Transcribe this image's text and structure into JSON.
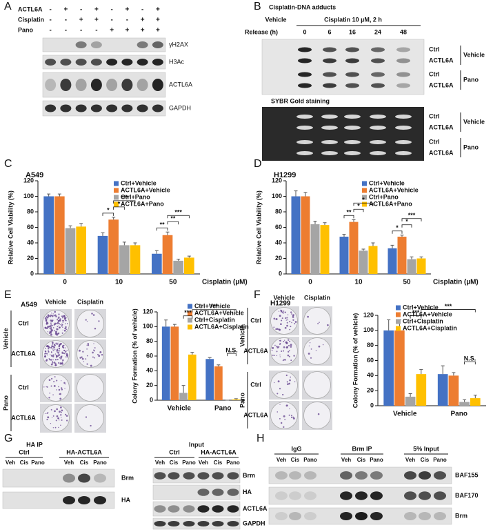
{
  "panels": {
    "A": {
      "letter": "A",
      "treatments": [
        {
          "name": "ACTL6A",
          "signs": [
            "-",
            "+",
            "-",
            "+",
            "-",
            "+",
            "-",
            "+"
          ]
        },
        {
          "name": "Cisplatin",
          "signs": [
            "-",
            "-",
            "+",
            "+",
            "-",
            "-",
            "+",
            "+"
          ]
        },
        {
          "name": "Pano",
          "signs": [
            "-",
            "-",
            "-",
            "-",
            "+",
            "+",
            "+",
            "+"
          ]
        }
      ],
      "blots": [
        "γH2AX",
        "H3Ac",
        "ACTL6A",
        "GAPDH"
      ]
    },
    "B": {
      "letter": "B",
      "title": "Cisplatin-DNA adducts",
      "vehicle": "Vehicle",
      "treatment": "Cisplatin 10 µM, 2 h",
      "release_label": "Release (h)",
      "release": [
        0,
        6,
        16,
        24,
        48
      ],
      "rows": [
        "Ctrl",
        "ACTL6A",
        "Ctrl",
        "ACTL6A"
      ],
      "groups": [
        "Vehicle",
        "Pano"
      ],
      "stain_title": "SYBR Gold staining",
      "stain_rows": [
        "Ctrl",
        "ACTL6A",
        "Ctrl",
        "ACTL6A"
      ],
      "stain_groups": [
        "Vehicle",
        "Pano"
      ]
    },
    "C": {
      "letter": "C"
    },
    "D": {
      "letter": "D"
    },
    "E": {
      "letter": "E",
      "cell_line": "A549",
      "columns": [
        "Vehicle",
        "Cisplatin"
      ],
      "rows": [
        "Ctrl",
        "ACTL6A",
        "Ctrl",
        "ACTL6A"
      ],
      "groups": [
        "Vehicle",
        "Pano"
      ]
    },
    "F": {
      "letter": "F",
      "cell_line": "H1299",
      "columns": [
        "Vehicle",
        "Cisplatin"
      ],
      "rows": [
        "Ctrl",
        "ACTL6A",
        "Ctrl",
        "ACTL6A"
      ],
      "groups": [
        "Vehicle",
        "Pano"
      ]
    },
    "G": {
      "letter": "G",
      "ip_title": "HA IP",
      "ip_groups": [
        "Ctrl",
        "HA-ACTL6A"
      ],
      "ip_lanes": [
        "Veh",
        "Cis",
        "Pano",
        "Veh",
        "Cis",
        "Pano"
      ],
      "ip_blots": [
        "Brm",
        "HA"
      ],
      "input_title": "Input",
      "input_groups": [
        "Ctrl",
        "HA-ACTL6A"
      ],
      "input_lanes": [
        "Veh",
        "Cis",
        "Pano",
        "Veh",
        "Cis",
        "Pano"
      ],
      "input_blots": [
        "Brm",
        "HA",
        "ACTL6A",
        "GAPDH"
      ]
    },
    "H": {
      "letter": "H",
      "groups": [
        "IgG",
        "Brm IP",
        "5% Input"
      ],
      "lanes": [
        "Veh",
        "Cis",
        "Pano",
        "Veh",
        "Cis",
        "Pano",
        "Veh",
        "Cis",
        "Pano"
      ],
      "blots": [
        "BAF155",
        "BAF170",
        "Brm"
      ]
    }
  },
  "chart_data": [
    {
      "type": "bar",
      "title": "A549",
      "y_label": "Relative Cell Viability (%)",
      "x_label": "Cisplatin (µM)",
      "categories": [
        "0",
        "10",
        "50"
      ],
      "series": [
        {
          "name": "Ctrl+Vehicle",
          "color": "#4472c4",
          "values": [
            100,
            49,
            26
          ],
          "errors": [
            3,
            4,
            4
          ]
        },
        {
          "name": "ACTL6A+Vehicle",
          "color": "#ed7d31",
          "values": [
            100,
            70,
            50
          ],
          "errors": [
            3,
            3,
            4
          ]
        },
        {
          "name": "Ctrl+Pano",
          "color": "#a5a5a5",
          "values": [
            59,
            37,
            17
          ],
          "errors": [
            3,
            4,
            2
          ]
        },
        {
          "name": "ACTL6A+Pano",
          "color": "#ffc000",
          "values": [
            61,
            37,
            21
          ],
          "errors": [
            4,
            3,
            2
          ]
        }
      ],
      "ylim": [
        0,
        120
      ],
      "yticks": [
        0,
        20,
        40,
        60,
        80,
        100,
        120
      ],
      "annotations": [
        "*",
        "*",
        "***",
        "**",
        "**",
        "***"
      ]
    },
    {
      "type": "bar",
      "title": "H1299",
      "y_label": "Relative Cell Viability (%)",
      "x_label": "Cisplatin (µM)",
      "categories": [
        "0",
        "10",
        "50"
      ],
      "series": [
        {
          "name": "Ctrl+Vehicle",
          "color": "#4472c4",
          "values": [
            100,
            48,
            33
          ],
          "errors": [
            7,
            3,
            4
          ]
        },
        {
          "name": "ACTL6A+Vehicle",
          "color": "#ed7d31",
          "values": [
            100,
            67,
            48
          ],
          "errors": [
            5,
            3,
            2
          ]
        },
        {
          "name": "Ctrl+Pano",
          "color": "#a5a5a5",
          "values": [
            64,
            30,
            19
          ],
          "errors": [
            4,
            2,
            3
          ]
        },
        {
          "name": "ACTL6A+Pano",
          "color": "#ffc000",
          "values": [
            63,
            36,
            20
          ],
          "errors": [
            3,
            4,
            2
          ]
        }
      ],
      "ylim": [
        0,
        120
      ],
      "yticks": [
        0,
        20,
        40,
        60,
        80,
        100,
        120
      ],
      "annotations": [
        "**",
        "*",
        "*",
        "*",
        "*",
        "***"
      ]
    },
    {
      "type": "bar",
      "y_label": "Colony Formation (% of vehicle)",
      "categories": [
        "Vehicle",
        "Pano"
      ],
      "series": [
        {
          "name": "Ctrl+Vehicle",
          "color": "#4472c4",
          "values": [
            100,
            56
          ],
          "errors": [
            9,
            2
          ]
        },
        {
          "name": "ACTL6A+Vehicle",
          "color": "#ed7d31",
          "values": [
            100,
            46
          ],
          "errors": [
            3,
            2
          ]
        },
        {
          "name": "Ctrl+Cisplatin",
          "color": "#a5a5a5",
          "values": [
            10,
            0
          ],
          "errors": [
            10,
            0
          ]
        },
        {
          "name": "ACTL6A+Cisplatin",
          "color": "#ffc000",
          "values": [
            62,
            1
          ],
          "errors": [
            3,
            1
          ]
        }
      ],
      "ylim": [
        0,
        120
      ],
      "yticks": [
        0,
        20,
        40,
        60,
        80,
        100,
        120
      ],
      "annotations": [
        "***",
        "***",
        "N.S."
      ]
    },
    {
      "type": "bar",
      "y_label": "Colony Formation (% of vehicle)",
      "categories": [
        "Vehicle",
        "Pano"
      ],
      "series": [
        {
          "name": "Ctrl+Vehicle",
          "color": "#4472c4",
          "values": [
            100,
            42
          ],
          "errors": [
            14,
            11
          ]
        },
        {
          "name": "ACTL6A+Vehicle",
          "color": "#ed7d31",
          "values": [
            100,
            40
          ],
          "errors": [
            14,
            4
          ]
        },
        {
          "name": "Ctrl+Cisplatin",
          "color": "#a5a5a5",
          "values": [
            12,
            5
          ],
          "errors": [
            4,
            3
          ]
        },
        {
          "name": "ACTL6A+Cisplatin",
          "color": "#ffc000",
          "values": [
            42,
            10
          ],
          "errors": [
            6,
            4
          ]
        }
      ],
      "ylim": [
        0,
        120
      ],
      "yticks": [
        0,
        20,
        40,
        60,
        80,
        100,
        120
      ],
      "annotations": [
        "***",
        "***",
        "N.S."
      ]
    }
  ]
}
